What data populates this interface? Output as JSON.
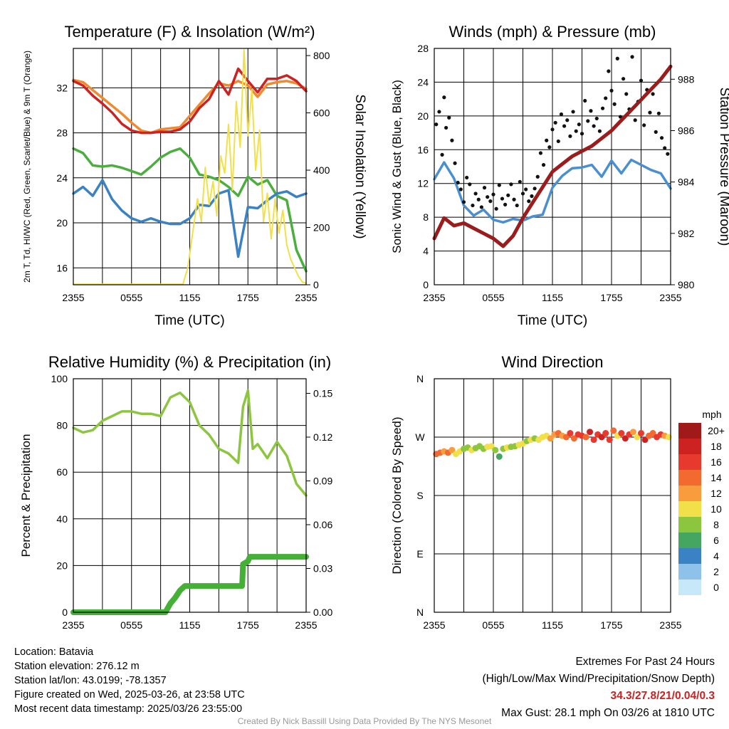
{
  "chart_data": [
    {
      "type": "line",
      "title": "Temperature (F) & Insolation (W/m²)",
      "xlabel": "Time (UTC)",
      "ylabel": "2m T, Td, HI/WC (Red, Green, Scarlet/Blue) & 9m T (Orange)",
      "y2label": "Solar Insolation (Yellow)",
      "x_ticks": [
        "2355",
        "0555",
        "1155",
        "1755",
        "2355"
      ],
      "x_hours": [
        0,
        24
      ],
      "ylim": [
        14.5,
        35.5
      ],
      "y_ticks": [
        16,
        20,
        24,
        28,
        32
      ],
      "y2lim": [
        0,
        825
      ],
      "y2_ticks": [
        0,
        200,
        400,
        600,
        800
      ],
      "series": [
        {
          "color": "#f08a30",
          "axis": "y",
          "x": [
            0,
            1,
            2,
            3,
            4,
            5,
            6,
            7,
            8,
            9,
            10,
            11,
            12,
            13,
            14,
            15,
            16,
            17,
            18,
            19,
            20,
            21,
            22,
            23,
            24
          ],
          "values": [
            32.7,
            32.5,
            31.8,
            31.1,
            30.4,
            29.7,
            28.9,
            28.2,
            28.0,
            28.3,
            28.4,
            28.5,
            29.5,
            30.5,
            31.5,
            32.4,
            32.2,
            32.6,
            32.2,
            31.2,
            32.3,
            32.5,
            32.6,
            32.4,
            31.9
          ]
        },
        {
          "color": "#cc2222",
          "axis": "y",
          "x": [
            0,
            1,
            2,
            3,
            4,
            5,
            6,
            7,
            8,
            9,
            10,
            11,
            12,
            13,
            14,
            15,
            16,
            17,
            18,
            19,
            20,
            21,
            22,
            23,
            24
          ],
          "values": [
            32.6,
            32.2,
            31.3,
            30.6,
            29.8,
            28.8,
            28.2,
            28.0,
            28.0,
            28.1,
            28.1,
            28.3,
            29.0,
            30.2,
            31.0,
            32.6,
            31.4,
            33.7,
            32.6,
            31.6,
            32.8,
            32.8,
            33.1,
            32.6,
            31.7
          ]
        },
        {
          "color": "#4aaf3c",
          "axis": "y",
          "x": [
            0,
            1,
            2,
            3,
            4,
            5,
            6,
            7,
            8,
            9,
            10,
            11,
            12,
            13,
            14,
            15,
            16,
            17,
            18,
            19,
            20,
            21,
            22,
            23,
            24
          ],
          "values": [
            26.6,
            26.2,
            25.1,
            25.0,
            25.1,
            24.9,
            24.6,
            24.3,
            25.0,
            25.8,
            26.3,
            26.6,
            25.8,
            24.3,
            24.1,
            23.8,
            23.2,
            22.4,
            24.1,
            23.4,
            23.8,
            22.4,
            22.0,
            17.6,
            15.7
          ]
        },
        {
          "color": "#3b82c4",
          "axis": "y",
          "x": [
            0,
            1,
            2,
            3,
            4,
            5,
            6,
            7,
            8,
            9,
            10,
            11,
            12,
            13,
            14,
            15,
            16,
            17,
            18,
            19,
            20,
            21,
            22,
            23,
            24
          ],
          "values": [
            22.6,
            23.2,
            22.4,
            23.8,
            22.1,
            21.1,
            20.4,
            20.1,
            20.4,
            20.1,
            19.9,
            19.9,
            20.4,
            21.6,
            21.5,
            22.6,
            22.9,
            17.0,
            21.4,
            21.3,
            22.0,
            22.6,
            22.8,
            22.3,
            22.6
          ]
        },
        {
          "color": "#f2e04a",
          "axis": "y2",
          "x": [
            0,
            11.3,
            11.8,
            12.3,
            12.8,
            13.2,
            13.6,
            14.0,
            14.4,
            14.8,
            15.2,
            15.6,
            16.0,
            16.4,
            16.8,
            17.2,
            17.6,
            18.0,
            18.4,
            18.8,
            19.2,
            19.6,
            20.0,
            20.4,
            20.8,
            21.2,
            21.6,
            22.0,
            22.4,
            22.8,
            23.2,
            23.6,
            24
          ],
          "values": [
            2,
            2,
            60,
            180,
            300,
            220,
            410,
            280,
            360,
            240,
            450,
            390,
            560,
            330,
            640,
            480,
            820,
            520,
            680,
            400,
            540,
            220,
            320,
            160,
            300,
            180,
            260,
            140,
            90,
            60,
            30,
            10,
            5
          ]
        }
      ]
    },
    {
      "type": "line",
      "title": "Winds (mph) & Pressure (mb)",
      "xlabel": "Time (UTC)",
      "ylabel": "Sonic Wind & Gust (Blue, Black)",
      "y2label": "Station Pressure (Maroon)",
      "x_ticks": [
        "2355",
        "0555",
        "1155",
        "1755",
        "2355"
      ],
      "x_hours": [
        0,
        24
      ],
      "ylim": [
        0,
        28
      ],
      "y_ticks": [
        0,
        4,
        8,
        12,
        16,
        20,
        24,
        28
      ],
      "y2lim": [
        980,
        989.2
      ],
      "y2_ticks": [
        980,
        982,
        984,
        986,
        988
      ],
      "series": [
        {
          "color": "#4a90d0",
          "axis": "y",
          "name": "wind",
          "x": [
            0,
            1,
            2,
            3,
            4,
            5,
            6,
            7,
            8,
            9,
            10,
            11,
            12,
            13,
            14,
            15,
            16,
            17,
            18,
            19,
            20,
            21,
            22,
            23,
            24
          ],
          "values": [
            12.5,
            14.5,
            12.6,
            9.4,
            8.2,
            8.9,
            7.7,
            7.4,
            7.8,
            7.6,
            8.1,
            8.3,
            11.5,
            12.9,
            13.8,
            13.9,
            14.2,
            12.8,
            14.7,
            13.2,
            14.8,
            14.2,
            13.6,
            13.2,
            11.4
          ]
        },
        {
          "color": "#111111",
          "axis": "y",
          "name": "gust",
          "type": "scatter",
          "x": [
            0.2,
            0.5,
            0.8,
            1.0,
            1.2,
            1.5,
            1.8,
            2.1,
            2.4,
            2.7,
            3.0,
            3.3,
            3.6,
            3.9,
            4.2,
            4.5,
            4.8,
            5.1,
            5.4,
            5.7,
            6.0,
            6.3,
            6.6,
            6.9,
            7.2,
            7.5,
            7.8,
            8.1,
            8.4,
            8.7,
            9.0,
            9.3,
            9.6,
            9.9,
            10.2,
            10.5,
            10.8,
            11.1,
            11.4,
            11.7,
            12.0,
            12.3,
            12.6,
            12.9,
            13.2,
            13.5,
            13.8,
            14.1,
            14.4,
            14.7,
            15.0,
            15.3,
            15.6,
            15.9,
            16.2,
            16.5,
            16.8,
            17.1,
            17.4,
            17.7,
            18.0,
            18.3,
            18.6,
            18.9,
            19.2,
            19.5,
            19.8,
            20.1,
            20.4,
            20.7,
            21.0,
            21.3,
            21.6,
            21.9,
            22.2,
            22.5,
            22.8,
            23.1,
            23.4,
            23.7
          ],
          "values": [
            19.0,
            20.5,
            15.4,
            22.2,
            18.6,
            19.8,
            17.1,
            14.4,
            12.1,
            11.3,
            9.8,
            12.7,
            11.9,
            9.4,
            10.8,
            10.1,
            9.2,
            11.5,
            10.4,
            9.9,
            10.7,
            9.0,
            11.8,
            10.2,
            9.5,
            10.6,
            11.9,
            10.1,
            9.4,
            12.2,
            10.8,
            11.3,
            9.9,
            10.5,
            11.4,
            12.8,
            15.6,
            14.2,
            17.1,
            16.3,
            18.4,
            19.2,
            17.0,
            20.2,
            18.8,
            19.5,
            17.6,
            20.5,
            18.2,
            19.0,
            17.9,
            21.8,
            19.4,
            20.6,
            18.8,
            19.7,
            18.2,
            20.9,
            22.1,
            25.3,
            23.0,
            21.4,
            26.8,
            19.9,
            24.4,
            22.6,
            20.8,
            27.0,
            19.5,
            21.7,
            24.2,
            18.9,
            23.1,
            20.4,
            22.6,
            18.1,
            20.3,
            17.4,
            16.2,
            15.5
          ]
        },
        {
          "color": "#9b1c1c",
          "axis": "y2",
          "name": "pressure",
          "x": [
            0,
            1,
            2,
            3,
            4,
            5,
            6,
            7,
            8,
            9,
            10,
            11,
            12,
            13,
            14,
            15,
            16,
            17,
            18,
            19,
            20,
            21,
            22,
            23,
            24
          ],
          "values": [
            981.8,
            982.6,
            982.3,
            982.4,
            982.2,
            982.0,
            981.8,
            981.5,
            981.9,
            982.6,
            983.2,
            983.8,
            984.4,
            984.7,
            985.0,
            985.2,
            985.4,
            985.7,
            986.0,
            986.4,
            986.8,
            987.2,
            987.6,
            988.0,
            988.5
          ]
        }
      ]
    },
    {
      "type": "line",
      "title": "Relative Humidity (%) & Precipitation (in)",
      "ylabel": "Percent & Precipitation",
      "x_ticks": [
        "2355",
        "0555",
        "1155",
        "1755",
        "2355"
      ],
      "x_hours": [
        0,
        24
      ],
      "ylim": [
        0,
        100
      ],
      "y_ticks": [
        0,
        20,
        40,
        60,
        80,
        100
      ],
      "y2lim": [
        0,
        0.16
      ],
      "y2_ticks": [
        "0.00",
        "0.03",
        "0.06",
        "0.09",
        "0.12",
        "0.15"
      ],
      "series": [
        {
          "color": "#8cc63f",
          "axis": "y",
          "name": "rh",
          "x": [
            0,
            1,
            2,
            3,
            4,
            5,
            6,
            7,
            8,
            9,
            10,
            11,
            12,
            13,
            14,
            15,
            16,
            17,
            17.5,
            18,
            18.5,
            19,
            20,
            21,
            22,
            23,
            24
          ],
          "values": [
            79,
            77,
            78,
            82,
            84,
            86,
            86,
            85,
            85,
            84,
            92,
            94,
            90,
            80,
            76,
            70,
            68,
            64,
            88,
            95,
            70,
            72,
            66,
            73,
            67,
            55,
            50
          ]
        },
        {
          "color": "#44b036",
          "axis": "y2",
          "name": "precip",
          "x": [
            0,
            9.5,
            10,
            10.5,
            11,
            11.5,
            17.4,
            17.5,
            18,
            18.2,
            24
          ],
          "values": [
            0,
            0,
            0.006,
            0.01,
            0.015,
            0.018,
            0.018,
            0.033,
            0.035,
            0.038,
            0.038
          ]
        }
      ]
    },
    {
      "type": "scatter",
      "title": "Wind Direction",
      "ylabel": "Direction (Colored By Speed)",
      "x_ticks": [
        "2355",
        "0555",
        "1155",
        "1755",
        "2355"
      ],
      "x_hours": [
        0,
        24
      ],
      "ylim": [
        0,
        360
      ],
      "y_ticks": [
        "N",
        "E",
        "S",
        "W",
        "N"
      ],
      "colorbar": {
        "title": "mph",
        "labels": [
          "20+",
          "18",
          "16",
          "14",
          "12",
          "10",
          "8",
          "6",
          "4",
          "2",
          "0"
        ],
        "colors": [
          "#a01a1a",
          "#cc2222",
          "#e8392e",
          "#f26a30",
          "#f89c3e",
          "#f2e04a",
          "#8cc63f",
          "#44a660",
          "#3b82c4",
          "#8ec2ea",
          "#c6e8f8"
        ]
      },
      "points": {
        "x": [
          0.2,
          0.6,
          1.0,
          1.4,
          1.8,
          2.2,
          2.6,
          3.0,
          3.4,
          3.8,
          4.2,
          4.6,
          5.0,
          5.4,
          5.8,
          6.2,
          6.6,
          7.0,
          7.4,
          7.8,
          8.2,
          8.6,
          9.0,
          9.4,
          9.8,
          10.2,
          10.6,
          11.0,
          11.4,
          11.8,
          12.2,
          12.6,
          13.0,
          13.4,
          13.8,
          14.2,
          14.6,
          15.0,
          15.4,
          15.8,
          16.2,
          16.6,
          17.0,
          17.4,
          17.8,
          18.2,
          18.6,
          19.0,
          19.4,
          19.8,
          20.2,
          20.6,
          21.0,
          21.4,
          21.8,
          22.2,
          22.6,
          23.0,
          23.4,
          23.8
        ],
        "values": [
          244,
          246,
          248,
          246,
          250,
          244,
          248,
          252,
          254,
          250,
          253,
          256,
          252,
          255,
          256,
          250,
          240,
          252,
          254,
          255,
          256,
          258,
          260,
          264,
          266,
          268,
          266,
          270,
          272,
          268,
          274,
          276,
          272,
          270,
          276,
          268,
          274,
          272,
          270,
          278,
          266,
          274,
          270,
          276,
          266,
          280,
          272,
          276,
          268,
          274,
          278,
          270,
          276,
          266,
          272,
          276,
          270,
          274,
          272,
          270
        ],
        "speeds": [
          14,
          13,
          12,
          14,
          12,
          10,
          9,
          8,
          8,
          9,
          8,
          7,
          8,
          10,
          9,
          8,
          6,
          8,
          9,
          8,
          8,
          9,
          9,
          8,
          9,
          8,
          10,
          9,
          10,
          11,
          12,
          13,
          12,
          14,
          16,
          14,
          15,
          16,
          14,
          17,
          16,
          15,
          18,
          16,
          15,
          13,
          10,
          15,
          17,
          16,
          12,
          10,
          15,
          17,
          14,
          13,
          16,
          15,
          12,
          10
        ]
      }
    }
  ],
  "footer": {
    "location": "Location: Batavia",
    "elevation": "Station elevation: 276.12 m",
    "latlon": "Station lat/lon: 43.0199; -78.1357",
    "created": "Figure created on Wed, 2025-03-26, at 23:58 UTC",
    "recent": "Most recent data timestamp: 2025/03/26 23:55:00",
    "extremes_title": "Extremes For Past 24 Hours",
    "extremes_legend": "(High/Low/Max Wind/Precipitation/Snow Depth)",
    "extremes_values": "34.3/27.8/21/0.04/0.3",
    "max_gust": "Max Gust: 28.1 mph On 03/26 at 1810 UTC",
    "credit": "Created By Nick Bassill Using Data Provided By The NYS Mesonet"
  }
}
